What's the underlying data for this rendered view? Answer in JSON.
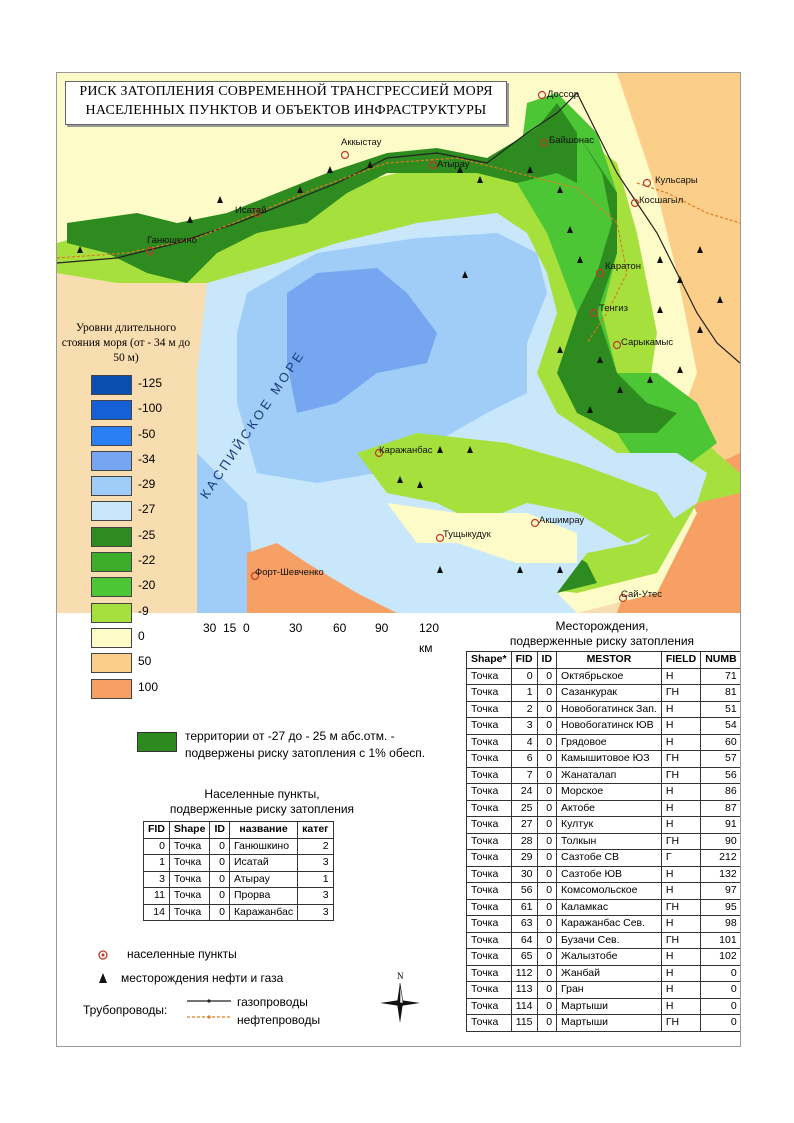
{
  "title_lines": [
    "РИСК ЗАТОПЛЕНИЯ СОВРЕМЕННОЙ ТРАНСГРЕССИЕЙ МОРЯ",
    "НАСЕЛЕННЫХ ПУНКТОВ И ОБЪЕКТОВ ИНФРАСТРУКТУРЫ"
  ],
  "sea_label": "КАСПИЙСКОЕ МОРЕ",
  "place_labels": {
    "dossor": "Доссор",
    "baishonas": "Байшонас",
    "akkystau": "Аккыстау",
    "atyrau": "Атырау",
    "kulsary": "Кульсары",
    "kosshagyl": "Косшагыл",
    "isatai": "Исатай",
    "ganyushkino": "Ганюшкино",
    "karaton": "Каратон",
    "tengiz": "Тенгиз",
    "sarykamys": "Сарыкамыс",
    "karazhanbas": "Каражанбас",
    "akshimrau": "Акшимрау",
    "tushchykuduk": "Тущыкудук",
    "fort": "Форт-Шевченко",
    "sai_utes": "Сай-Утес"
  },
  "legend": {
    "title": "Уровни длительного стояния моря (от - 34 м до 50 м)",
    "levels": [
      {
        "label": "-125",
        "color": "#0a4fb0"
      },
      {
        "label": "-100",
        "color": "#1560d6"
      },
      {
        "label": "-50",
        "color": "#2a7ff5"
      },
      {
        "label": "-34",
        "color": "#76a6f0"
      },
      {
        "label": "-29",
        "color": "#9fcdf8"
      },
      {
        "label": "-27",
        "color": "#c9e7fb"
      },
      {
        "label": "-25",
        "color": "#2e8b1f"
      },
      {
        "label": "-22",
        "color": "#3cae2a"
      },
      {
        "label": "-20",
        "color": "#4cc634"
      },
      {
        "label": "-9",
        "color": "#a6e03c"
      },
      {
        "label": "0",
        "color": "#fdfbc7"
      },
      {
        "label": "50",
        "color": "#fbcf8a"
      },
      {
        "label": "100",
        "color": "#f6a066"
      }
    ]
  },
  "scale": {
    "labels": [
      "30",
      "15",
      "0",
      "30",
      "60",
      "90",
      "120"
    ],
    "unit": "км"
  },
  "risk_note": {
    "line1": "территории от -27 до - 25 м абс.отм. -",
    "line2": "подвержены риску затопления с 1% обесп."
  },
  "settlements": {
    "title1": "Населенные пункты,",
    "title2": "подверженные риску затопления",
    "headers": [
      "FID",
      "Shape",
      "ID",
      "название",
      "катег"
    ],
    "rows": [
      [
        "0",
        "Точка",
        "0",
        "Ганюшкино",
        "2"
      ],
      [
        "1",
        "Точка",
        "0",
        "Исатай",
        "3"
      ],
      [
        "3",
        "Точка",
        "0",
        "Атырау",
        "1"
      ],
      [
        "11",
        "Точка",
        "0",
        "Прорва",
        "3"
      ],
      [
        "14",
        "Точка",
        "0",
        "Каражанбас",
        "3"
      ]
    ]
  },
  "fields": {
    "title1": "Месторождения,",
    "title2": "подверженные риску затопления",
    "headers": [
      "Shape*",
      "FID",
      "ID",
      "MESTOR",
      "FIELD",
      "NUMB"
    ],
    "rows": [
      [
        "Точка",
        "0",
        "0",
        "Октябрьское",
        "Н",
        "71"
      ],
      [
        "Точка",
        "1",
        "0",
        "Сазанкурак",
        "ГН",
        "81"
      ],
      [
        "Точка",
        "2",
        "0",
        "Новобогатинск Зап.",
        "Н",
        "51"
      ],
      [
        "Точка",
        "3",
        "0",
        "Новобогатинск ЮВ",
        "Н",
        "54"
      ],
      [
        "Точка",
        "4",
        "0",
        "Грядовое",
        "Н",
        "60"
      ],
      [
        "Точка",
        "6",
        "0",
        "Камышитовое ЮЗ",
        "ГН",
        "57"
      ],
      [
        "Точка",
        "7",
        "0",
        "Жанаталап",
        "ГН",
        "56"
      ],
      [
        "Точка",
        "24",
        "0",
        "Морское",
        "Н",
        "86"
      ],
      [
        "Точка",
        "25",
        "0",
        "Актобе",
        "Н",
        "87"
      ],
      [
        "Точка",
        "27",
        "0",
        "Култук",
        "Н",
        "91"
      ],
      [
        "Точка",
        "28",
        "0",
        "Толкын",
        "ГН",
        "90"
      ],
      [
        "Точка",
        "29",
        "0",
        "Сазтобе СВ",
        "Г",
        "212"
      ],
      [
        "Точка",
        "30",
        "0",
        "Сазтобе ЮВ",
        "Н",
        "132"
      ],
      [
        "Точка",
        "56",
        "0",
        "Комсомольское",
        "Н",
        "97"
      ],
      [
        "Точка",
        "61",
        "0",
        "Каламкас",
        "ГН",
        "95"
      ],
      [
        "Точка",
        "63",
        "0",
        "Каражанбас Сев.",
        "Н",
        "98"
      ],
      [
        "Точка",
        "64",
        "0",
        "Бузачи Сев.",
        "ГН",
        "101"
      ],
      [
        "Точка",
        "65",
        "0",
        "Жалызтобе",
        "Н",
        "102"
      ],
      [
        "Точка",
        "112",
        "0",
        "Жанбай",
        "Н",
        "0"
      ],
      [
        "Точка",
        "113",
        "0",
        "Гран",
        "Н",
        "0"
      ],
      [
        "Точка",
        "114",
        "0",
        "Мартыши",
        "Н",
        "0"
      ],
      [
        "Точка",
        "115",
        "0",
        "Мартыши",
        "ГН",
        "0"
      ]
    ]
  },
  "symbols": {
    "settlement": "населенные пункты",
    "oilgas": "месторождения нефти и газа",
    "pipelines": "Трубопроводы:",
    "gas": "газопроводы",
    "oil": "нефтепроводы"
  },
  "north_label": "N",
  "icons": {
    "settlement": "settlement-circle-icon",
    "field": "triangle-icon",
    "north": "north-arrow-icon"
  }
}
